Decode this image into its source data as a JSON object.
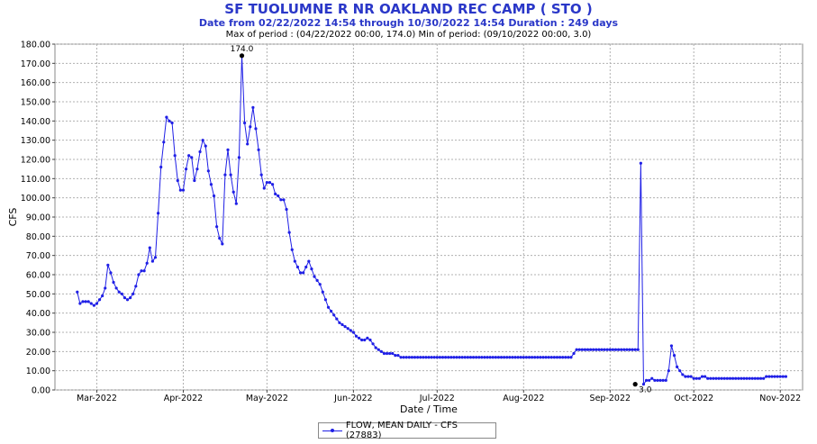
{
  "chart_data": {
    "type": "line",
    "title": "SF TUOLUMNE R NR OAKLAND REC CAMP ( STO )",
    "subtitle": "Date from 02/22/2022 14:54 through 10/30/2022 14:54 Duration : 249 days",
    "stats": "Max of period : (04/22/2022 00:00, 174.0)  Min of period: (09/10/2022 00:00,  3.0)",
    "xlabel": "Date / Time",
    "ylabel": "CFS",
    "ylim": [
      0,
      180
    ],
    "yticks": [
      "0.00",
      "10.00",
      "20.00",
      "30.00",
      "40.00",
      "50.00",
      "60.00",
      "70.00",
      "80.00",
      "90.00",
      "100.00",
      "110.00",
      "120.00",
      "130.00",
      "140.00",
      "150.00",
      "160.00",
      "170.00",
      "180.00"
    ],
    "xticks": [
      "Mar-2022",
      "Apr-2022",
      "May-2022",
      "Jun-2022",
      "Jul-2022",
      "Aug-2022",
      "Sep-2022",
      "Oct-2022",
      "Nov-2022"
    ],
    "grid": true,
    "legend_position": "bottom-center",
    "annotations": [
      {
        "label": "174.0",
        "x": "2022-04-22",
        "y": 174
      },
      {
        "label": "3.0",
        "x": "2022-09-10",
        "y": 3
      }
    ],
    "series": [
      {
        "name": "FLOW, MEAN DAILY - CFS (27883)",
        "color": "#1f1fe6",
        "start": "2022-02-22",
        "values": [
          51,
          45,
          46,
          46,
          46,
          45,
          44,
          45,
          47,
          49,
          53,
          65,
          61,
          56,
          53,
          51,
          50,
          48,
          47,
          48,
          50,
          54,
          60,
          62,
          62,
          66,
          74,
          67,
          69,
          92,
          116,
          129,
          142,
          140,
          139,
          122,
          109,
          104,
          104,
          115,
          122,
          121,
          109,
          115,
          124,
          130,
          127,
          114,
          107,
          101,
          85,
          79,
          76,
          112,
          125,
          112,
          103,
          97,
          121,
          174,
          139,
          128,
          137,
          147,
          136,
          125,
          112,
          105,
          108,
          108,
          107,
          102,
          101,
          99,
          99,
          94,
          82,
          73,
          67,
          64,
          61,
          61,
          64,
          67,
          63,
          59,
          57,
          55,
          51,
          47,
          43,
          41,
          39,
          37,
          35,
          34,
          33,
          32,
          31,
          30,
          28,
          27,
          26,
          26,
          27,
          26,
          24,
          22,
          21,
          20,
          19,
          19,
          19,
          19,
          18,
          18,
          17,
          17,
          17,
          17,
          17,
          17,
          17,
          17,
          17,
          17,
          17,
          17,
          17,
          17,
          17,
          17,
          17,
          17,
          17,
          17,
          17,
          17,
          17,
          17,
          17,
          17,
          17,
          17,
          17,
          17,
          17,
          17,
          17,
          17,
          17,
          17,
          17,
          17,
          17,
          17,
          17,
          17,
          17,
          17,
          17,
          17,
          17,
          17,
          17,
          17,
          17,
          17,
          17,
          17,
          17,
          17,
          17,
          17,
          17,
          17,
          17,
          17,
          19,
          21,
          21,
          21,
          21,
          21,
          21,
          21,
          21,
          21,
          21,
          21,
          21,
          21,
          21,
          21,
          21,
          21,
          21,
          21,
          21,
          21,
          21,
          21,
          118,
          3,
          5,
          5,
          6,
          5,
          5,
          5,
          5,
          5,
          10,
          23,
          18,
          12,
          10,
          8,
          7,
          7,
          7,
          6,
          6,
          6,
          7,
          7,
          6,
          6,
          6,
          6,
          6,
          6,
          6,
          6,
          6,
          6,
          6,
          6,
          6,
          6,
          6,
          6,
          6,
          6,
          6,
          6,
          6,
          7,
          7,
          7,
          7,
          7,
          7,
          7,
          7
        ]
      }
    ]
  }
}
